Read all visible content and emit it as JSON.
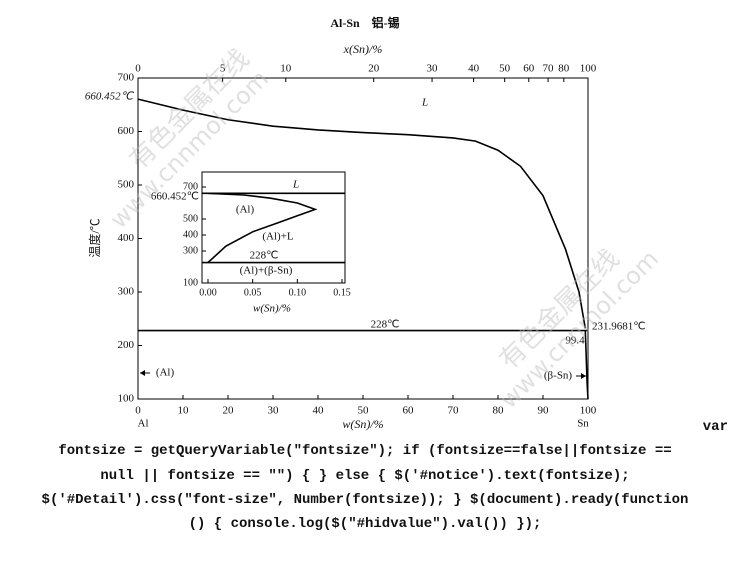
{
  "chart_data": [
    {
      "type": "line",
      "title": "Al-Sn　铝-锡",
      "xlabel": "w(Sn)/%",
      "x2label": "x(Sn)/%",
      "ylabel": "温度/℃",
      "xlim": [
        0,
        100
      ],
      "ylim": [
        100,
        700
      ],
      "xticks": [
        0,
        10,
        20,
        30,
        40,
        50,
        60,
        70,
        80,
        90,
        100
      ],
      "x2ticks": [
        0,
        5,
        10,
        20,
        30,
        40,
        50,
        60,
        70,
        80,
        100
      ],
      "yticks": [
        100,
        200,
        300,
        400,
        500,
        600,
        700
      ],
      "series": [
        {
          "name": "liquidus",
          "color": "#000000",
          "x": [
            0,
            10,
            20,
            30,
            40,
            50,
            60,
            70,
            75,
            80,
            85,
            90,
            95,
            98,
            99.4
          ],
          "values": [
            660.452,
            640,
            622,
            610,
            603,
            598,
            594,
            588,
            582,
            565,
            535,
            480,
            380,
            300,
            231.9681
          ]
        },
        {
          "name": "eutectic",
          "color": "#000000",
          "x": [
            0,
            100
          ],
          "values": [
            228,
            228
          ]
        },
        {
          "name": "Sn solidus",
          "color": "#000000",
          "x": [
            99.4,
            99.6,
            99.8,
            100
          ],
          "values": [
            228,
            180,
            130,
            100
          ]
        }
      ],
      "annotations": [
        "660.452℃",
        "L",
        "228℃",
        "231.9681℃",
        "99.4",
        "(Al)",
        "(β-Sn)",
        "Al",
        "Sn"
      ]
    },
    {
      "type": "line",
      "xlabel": "w(Sn)/%",
      "xlim": [
        0,
        0.15
      ],
      "ylim": [
        100,
        700
      ],
      "xticks": [
        {
          "value": 0,
          "label": "0.00"
        },
        {
          "value": 0.05,
          "label": "0.05"
        },
        {
          "value": 0.1,
          "label": "0.10"
        },
        0.15
      ],
      "yticks": [
        100,
        300,
        400,
        500,
        700
      ],
      "series": [
        {
          "name": "solvus",
          "color": "#000000",
          "x": [
            0,
            0.02,
            0.05,
            0.08,
            0.1,
            0.12,
            0.1,
            0.07,
            0.04,
            0
          ],
          "values": [
            228,
            330,
            420,
            480,
            520,
            560,
            600,
            630,
            650,
            660.452
          ]
        },
        {
          "name": "melting",
          "color": "#000000",
          "x": [
            0,
            0.15
          ],
          "values": [
            660.452,
            660.452
          ]
        },
        {
          "name": "eutectic",
          "color": "#000000",
          "x": [
            0,
            0.15
          ],
          "values": [
            228,
            228
          ]
        }
      ],
      "annotations": [
        "L",
        "660.452℃",
        "(Al)",
        "(Al)+L",
        "228℃",
        "(Al)+(β-Sn)"
      ]
    }
  ],
  "watermarks": [
    "有色金属在线",
    "www.cnnmol.com",
    "有色金属在线",
    "www.cnnmol.com"
  ],
  "code_lines": [
    "var",
    "fontsize = getQueryVariable(″fontsize″); if (fontsize==false||fontsize ==",
    "null || fontsize == ″″) { } else { $('#notice').text(fontsize);",
    "$('#Detail').css(″font-size″, Number(fontsize)); } $(document).ready(function",
    "() { console.log($(″#hidvalue″).val()) });"
  ]
}
